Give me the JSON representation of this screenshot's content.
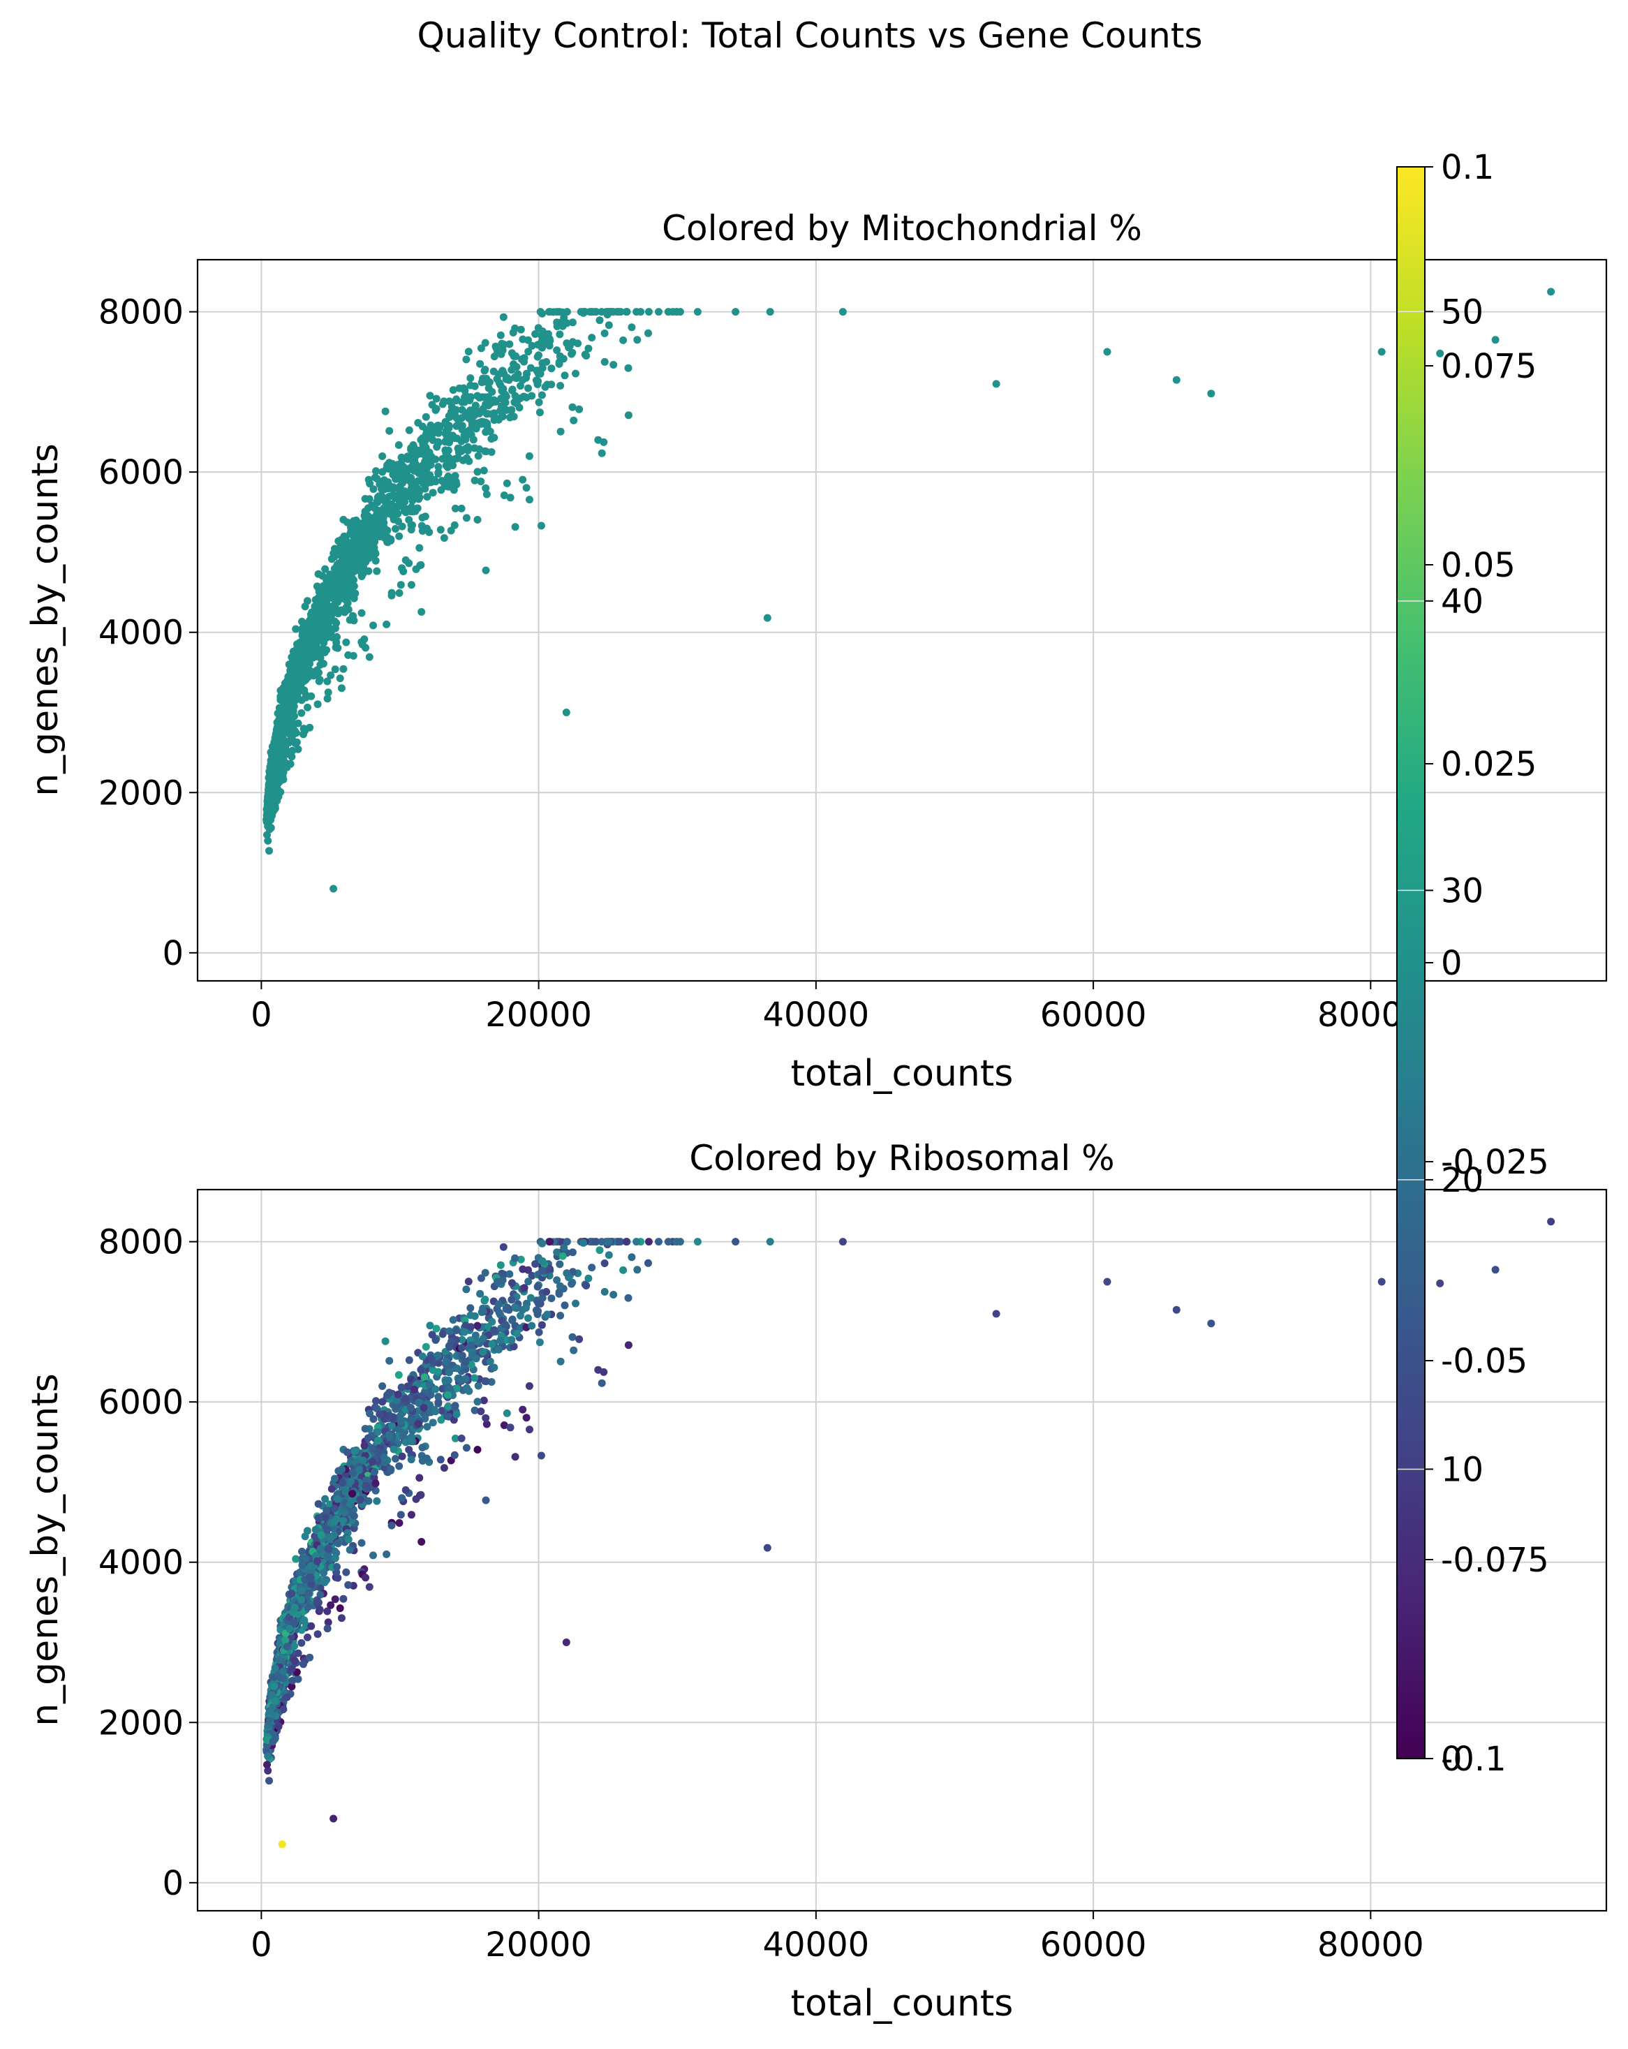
{
  "suptitle": "Quality Control: Total Counts vs Gene Counts",
  "colors": {
    "mito_point": "#21918c"
  },
  "chart_data": [
    {
      "type": "scatter",
      "title": "Colored by Mitochondrial %",
      "xlabel": "total_counts",
      "ylabel": "n_genes_by_counts",
      "xlim": [
        -4600,
        97000
      ],
      "ylim": [
        -350,
        8650
      ],
      "xticks": [
        0,
        20000,
        40000,
        60000,
        80000
      ],
      "xtick_labels": [
        "0",
        "20000",
        "40000",
        "60000",
        "80000"
      ],
      "yticks": [
        0,
        2000,
        4000,
        6000,
        8000
      ],
      "ytick_labels": [
        "0",
        "2000",
        "4000",
        "6000",
        "8000"
      ],
      "grid": true,
      "color_by": "pct_counts_mt",
      "point_color": "#21918c",
      "trend": "n_genes ≈ 190·total_counts^0.37",
      "point_count": 3000,
      "outliers": [
        {
          "x": 93000,
          "y": 8250
        },
        {
          "x": 80800,
          "y": 7500
        },
        {
          "x": 85000,
          "y": 7480
        },
        {
          "x": 89000,
          "y": 7650
        },
        {
          "x": 61000,
          "y": 7500
        },
        {
          "x": 68500,
          "y": 6980
        },
        {
          "x": 66000,
          "y": 7150
        },
        {
          "x": 53000,
          "y": 7100
        },
        {
          "x": 36500,
          "y": 4180
        },
        {
          "x": 22000,
          "y": 3000
        },
        {
          "x": 5200,
          "y": 800
        }
      ]
    },
    {
      "type": "scatter",
      "title": "Colored by Ribosomal %",
      "xlabel": "total_counts",
      "ylabel": "n_genes_by_counts",
      "xlim": [
        -4600,
        97000
      ],
      "ylim": [
        -350,
        8650
      ],
      "xticks": [
        0,
        20000,
        40000,
        60000,
        80000
      ],
      "xtick_labels": [
        "0",
        "20000",
        "40000",
        "60000",
        "80000"
      ],
      "yticks": [
        0,
        2000,
        4000,
        6000,
        8000
      ],
      "ytick_labels": [
        "0",
        "2000",
        "4000",
        "6000",
        "8000"
      ],
      "grid": true,
      "color_by": "pct_counts_ribo",
      "colormap": "viridis",
      "color_range": [
        0,
        55
      ],
      "trend": "n_genes ≈ 190·total_counts^0.37",
      "point_count": 3000,
      "outliers": [
        {
          "x": 93000,
          "y": 8250,
          "c": 10
        },
        {
          "x": 80800,
          "y": 7500,
          "c": 12
        },
        {
          "x": 85000,
          "y": 7480,
          "c": 11
        },
        {
          "x": 89000,
          "y": 7650,
          "c": 13
        },
        {
          "x": 61000,
          "y": 7500,
          "c": 12
        },
        {
          "x": 68500,
          "y": 6980,
          "c": 14
        },
        {
          "x": 66000,
          "y": 7150,
          "c": 12
        },
        {
          "x": 53000,
          "y": 7100,
          "c": 11
        },
        {
          "x": 36500,
          "y": 4180,
          "c": 12
        },
        {
          "x": 22000,
          "y": 3000,
          "c": 6
        },
        {
          "x": 5200,
          "y": 800,
          "c": 5
        },
        {
          "x": 1500,
          "y": 480,
          "c": 54
        }
      ]
    }
  ],
  "colorbars": [
    {
      "name": "pct_counts_ribo",
      "colormap": "viridis",
      "range": [
        0,
        55
      ],
      "ticks": [
        0,
        10,
        20,
        30,
        40,
        50
      ],
      "tick_labels": [
        "0",
        "10",
        "20",
        "30",
        "40",
        "50"
      ]
    },
    {
      "name": "pct_counts_mt",
      "range": [
        -0.1,
        0.1
      ],
      "ticks": [
        -0.1,
        -0.075,
        -0.05,
        -0.025,
        0,
        0.025,
        0.05,
        0.075,
        0.1
      ],
      "tick_labels": [
        "-0.1",
        "-0.075",
        "-0.05",
        "-0.025",
        "0",
        "0.025",
        "0.05",
        "0.075",
        "0.1"
      ]
    }
  ]
}
